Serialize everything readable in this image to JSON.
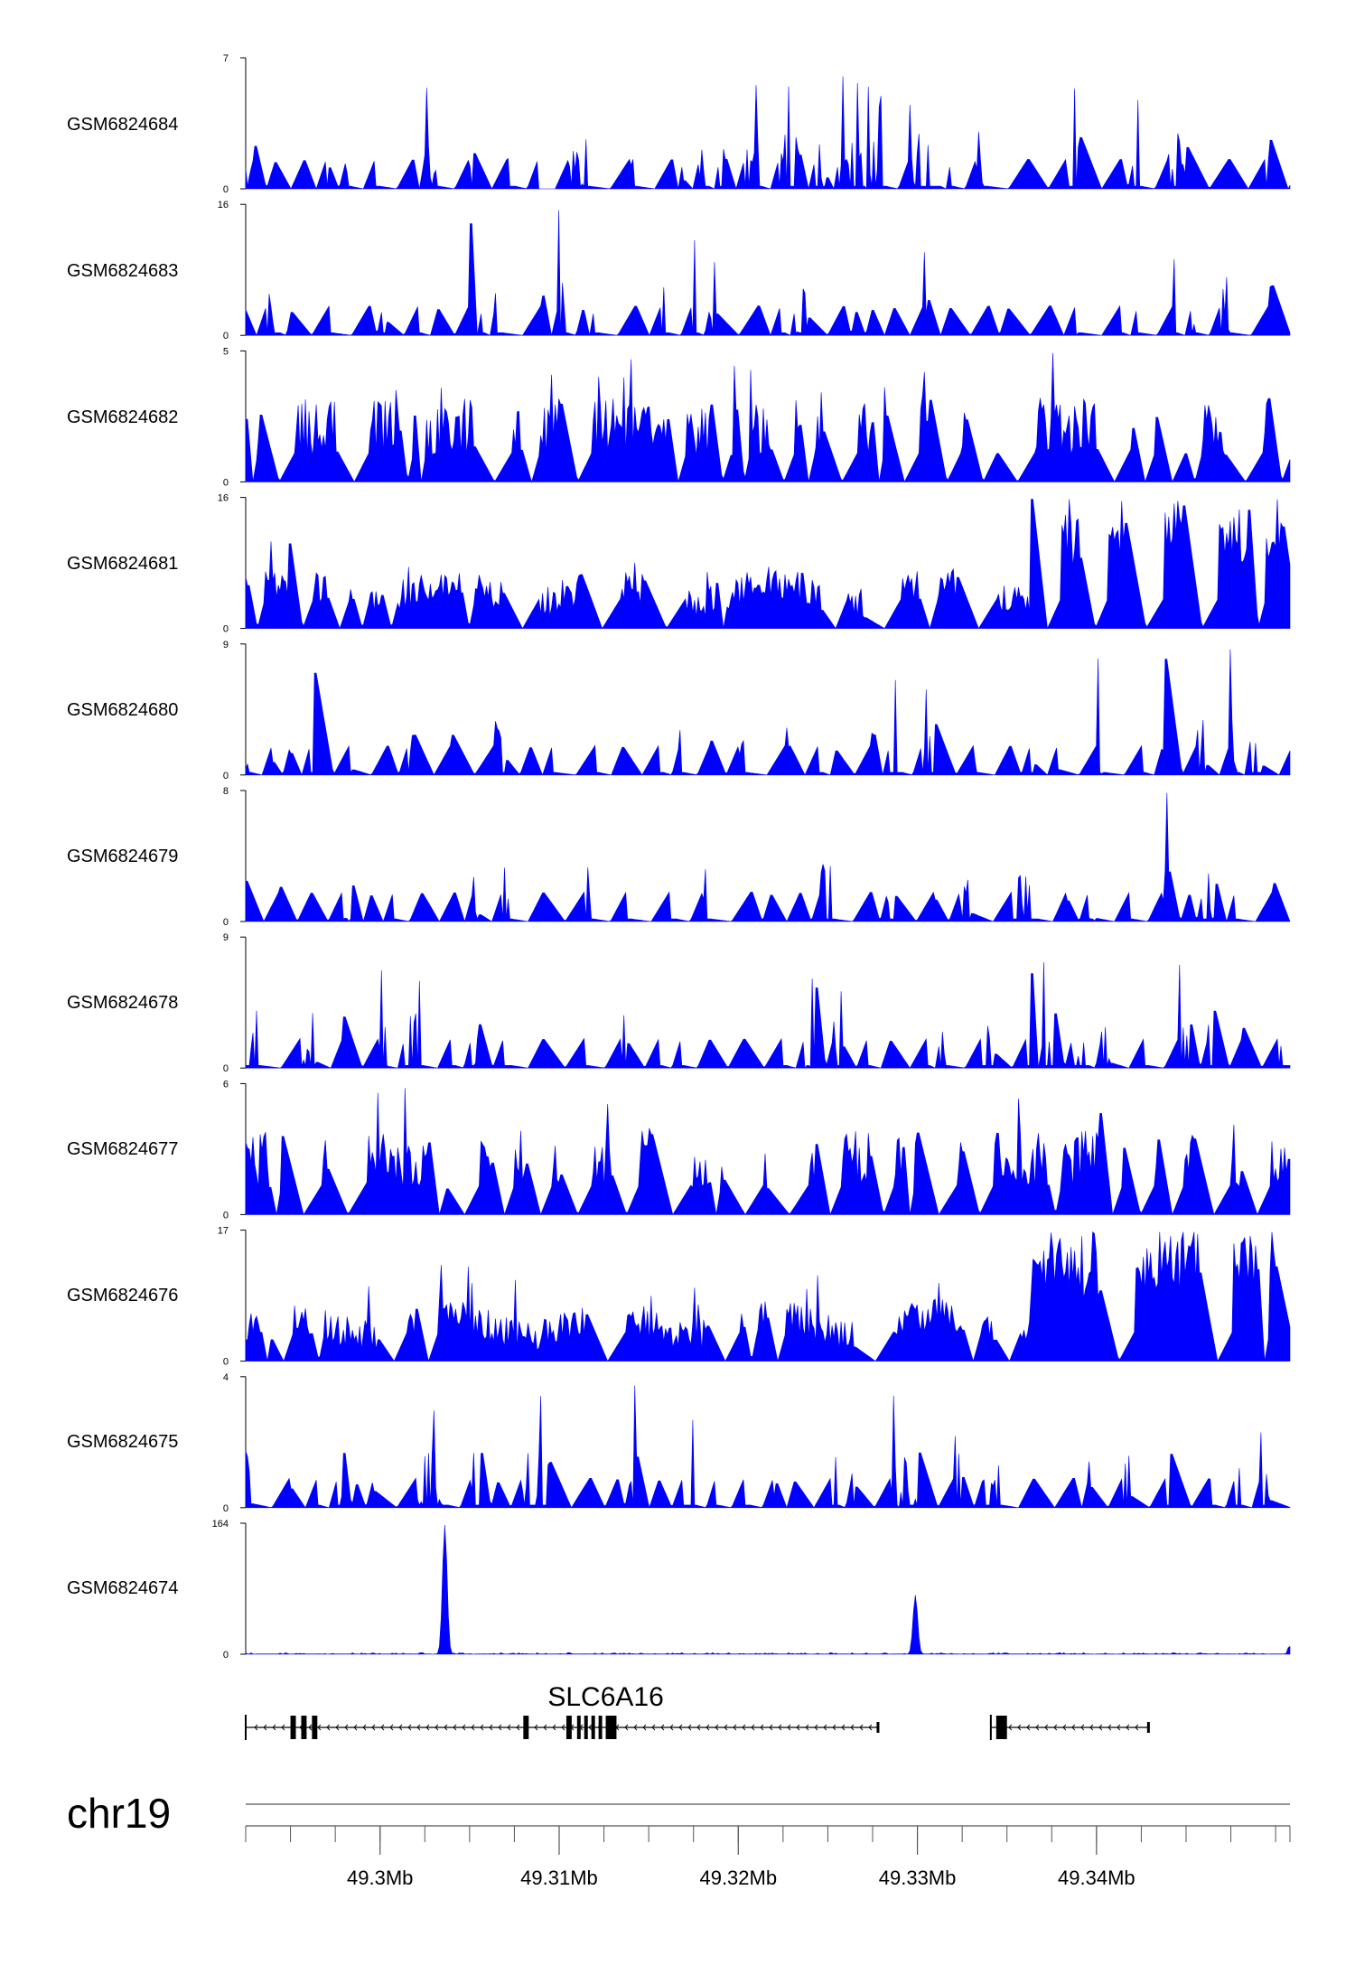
{
  "tracks": [
    {
      "name": "GSM6824684",
      "max": "7",
      "min": "0"
    },
    {
      "name": "GSM6824683",
      "max": "16",
      "min": "0"
    },
    {
      "name": "GSM6824682",
      "max": "5",
      "min": "0"
    },
    {
      "name": "GSM6824681",
      "max": "16",
      "min": "0"
    },
    {
      "name": "GSM6824680",
      "max": "9",
      "min": "0"
    },
    {
      "name": "GSM6824679",
      "max": "8",
      "min": "0"
    },
    {
      "name": "GSM6824678",
      "max": "9",
      "min": "0"
    },
    {
      "name": "GSM6824677",
      "max": "6",
      "min": "0"
    },
    {
      "name": "GSM6824676",
      "max": "17",
      "min": "0"
    },
    {
      "name": "GSM6824675",
      "max": "4",
      "min": "0"
    },
    {
      "name": "GSM6824674",
      "max": "164",
      "min": "0"
    }
  ],
  "gene": {
    "name": "SLC6A16"
  },
  "chromosome": "chr19",
  "colors": {
    "signal": "#0000FF",
    "axis": "#000000"
  },
  "chart_data": {
    "type": "area",
    "xlabel": "",
    "x_range_mb": [
      49.2925,
      49.3508
    ],
    "x_ticks": [
      "49.3Mb",
      "49.31Mb",
      "49.32Mb",
      "49.33Mb",
      "49.34Mb"
    ],
    "x_tick_values_mb": [
      49.3,
      49.31,
      49.32,
      49.33,
      49.34
    ],
    "series": [
      {
        "name": "GSM6824684",
        "ylim": [
          0,
          7
        ]
      },
      {
        "name": "GSM6824683",
        "ylim": [
          0,
          16
        ]
      },
      {
        "name": "GSM6824682",
        "ylim": [
          0,
          5
        ]
      },
      {
        "name": "GSM6824681",
        "ylim": [
          0,
          16
        ]
      },
      {
        "name": "GSM6824680",
        "ylim": [
          0,
          9
        ]
      },
      {
        "name": "GSM6824679",
        "ylim": [
          0,
          8
        ]
      },
      {
        "name": "GSM6824678",
        "ylim": [
          0,
          9
        ]
      },
      {
        "name": "GSM6824677",
        "ylim": [
          0,
          6
        ]
      },
      {
        "name": "GSM6824676",
        "ylim": [
          0,
          17
        ]
      },
      {
        "name": "GSM6824675",
        "ylim": [
          0,
          4
        ]
      },
      {
        "name": "GSM6824674",
        "ylim": [
          0,
          164
        ],
        "peaks": [
          {
            "x_mb": 49.3036,
            "y": 164
          },
          {
            "x_mb": 49.3299,
            "y": 75
          }
        ]
      }
    ],
    "gene_model": {
      "name": "SLC6A16",
      "transcripts": [
        {
          "start_mb": 49.2925,
          "end_mb": 49.3278,
          "exons_mb": [
            [
              49.295,
              49.2953
            ],
            [
              49.2956,
              49.2959
            ],
            [
              49.2962,
              49.2965
            ],
            [
              49.308,
              49.3083
            ],
            [
              49.3104,
              49.3107
            ],
            [
              49.311,
              49.3112
            ],
            [
              49.3114,
              49.3116
            ],
            [
              49.3118,
              49.312
            ],
            [
              49.3122,
              49.3124
            ],
            [
              49.3126,
              49.3132
            ]
          ]
        },
        {
          "start_mb": 49.3341,
          "end_mb": 49.3429,
          "exons_mb": [
            [
              49.3344,
              49.335
            ]
          ]
        }
      ]
    }
  }
}
